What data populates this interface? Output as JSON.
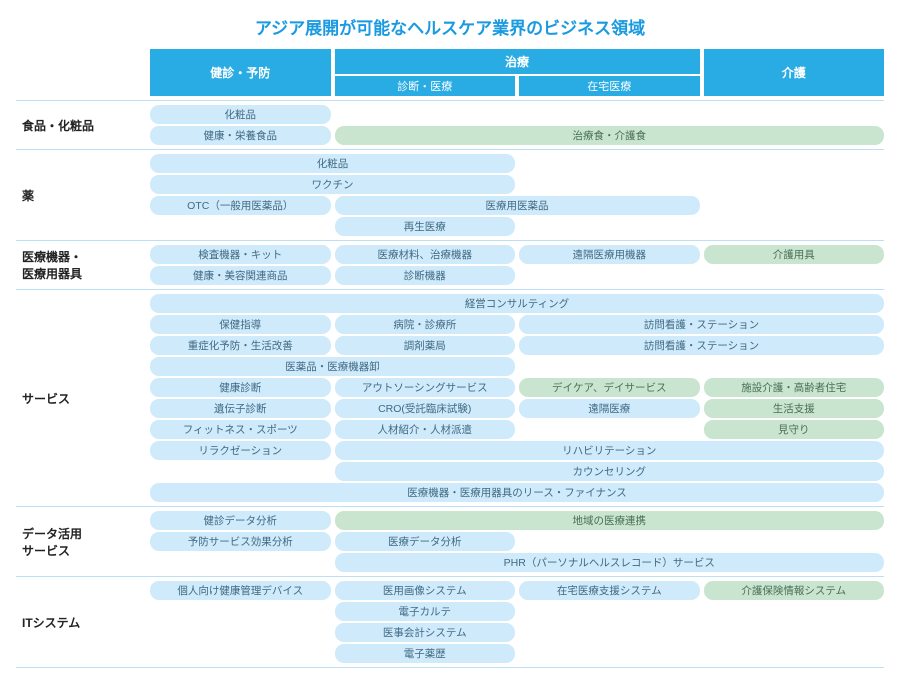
{
  "title": "アジア展開が可能なヘルスケア業界のビジネス領域",
  "title_color": "#1a9ae0",
  "colors": {
    "header_bg": "#29abe3",
    "header_fg": "#ffffff",
    "cell_blue": "#cfeafa",
    "cell_green": "#c9e5cf",
    "cell_fg": "#3f6a84",
    "cell_green_fg": "#4a6f55",
    "sep": "#bcdff5"
  },
  "columns": {
    "c1": "健診・予防",
    "c2_top": "治療",
    "c2a": "診断・医療",
    "c2b": "在宅医療",
    "c3": "介護"
  },
  "sections": [
    {
      "label": "食品・化粧品",
      "rows": [
        [
          {
            "span": 1,
            "text": "化粧品",
            "style": "blue"
          },
          null,
          null,
          null
        ],
        [
          {
            "span": 1,
            "text": "健康・栄養食品",
            "style": "blue"
          },
          {
            "span": 3,
            "text": "治療食・介護食",
            "style": "green"
          }
        ]
      ]
    },
    {
      "label": "薬",
      "rows": [
        [
          {
            "span": 2,
            "text": "化粧品",
            "style": "blue"
          },
          null,
          null
        ],
        [
          {
            "span": 2,
            "text": "ワクチン",
            "style": "blue"
          },
          null,
          null
        ],
        [
          {
            "span": 1,
            "text": "OTC（一般用医薬品）",
            "style": "blue"
          },
          {
            "span": 2,
            "text": "医療用医薬品",
            "style": "blue"
          },
          null
        ],
        [
          null,
          {
            "span": 1,
            "text": "再生医療",
            "style": "blue"
          },
          null,
          null
        ]
      ]
    },
    {
      "label": "医療機器・\n医療用器具",
      "rows": [
        [
          {
            "span": 1,
            "text": "検査機器・キット",
            "style": "blue"
          },
          {
            "span": 1,
            "text": "医療材料、治療機器",
            "style": "blue"
          },
          {
            "span": 1,
            "text": "遠隔医療用機器",
            "style": "blue"
          },
          {
            "span": 1,
            "text": "介護用具",
            "style": "green"
          }
        ],
        [
          {
            "span": 1,
            "text": "健康・美容関連商品",
            "style": "blue"
          },
          {
            "span": 1,
            "text": "診断機器",
            "style": "blue"
          },
          null,
          null
        ]
      ]
    },
    {
      "label": "サービス",
      "rows": [
        [
          {
            "span": 4,
            "text": "経営コンサルティング",
            "style": "blue"
          }
        ],
        [
          {
            "span": 1,
            "text": "保健指導",
            "style": "blue"
          },
          {
            "span": 1,
            "text": "病院・診療所",
            "style": "blue"
          },
          {
            "span": 2,
            "text": "訪問看護・ステーション",
            "style": "blue"
          }
        ],
        [
          {
            "span": 1,
            "text": "重症化予防・生活改善",
            "style": "blue"
          },
          {
            "span": 1,
            "text": "調剤薬局",
            "style": "blue"
          },
          {
            "span": 2,
            "text": "訪問看護・ステーション",
            "style": "blue"
          }
        ],
        [
          {
            "span": 2,
            "text": "医薬品・医療機器卸",
            "style": "blue"
          },
          null,
          null
        ],
        [
          {
            "span": 1,
            "text": "健康診断",
            "style": "blue"
          },
          {
            "span": 1,
            "text": "アウトソーシングサービス",
            "style": "blue"
          },
          {
            "span": 1,
            "text": "デイケア、デイサービス",
            "style": "green"
          },
          {
            "span": 1,
            "text": "施設介護・高齢者住宅",
            "style": "green"
          }
        ],
        [
          {
            "span": 1,
            "text": "遺伝子診断",
            "style": "blue"
          },
          {
            "span": 1,
            "text": "CRO(受託臨床試験)",
            "style": "blue"
          },
          {
            "span": 1,
            "text": "遠隔医療",
            "style": "blue"
          },
          {
            "span": 1,
            "text": "生活支援",
            "style": "green"
          }
        ],
        [
          {
            "span": 1,
            "text": "フィットネス・スポーツ",
            "style": "blue"
          },
          {
            "span": 1,
            "text": "人材紹介・人材派遣",
            "style": "blue"
          },
          null,
          {
            "span": 1,
            "text": "見守り",
            "style": "green"
          }
        ],
        [
          {
            "span": 1,
            "text": "リラクゼーション",
            "style": "blue"
          },
          {
            "span": 3,
            "text": "リハビリテーション",
            "style": "blue"
          }
        ],
        [
          null,
          {
            "span": 3,
            "text": "カウンセリング",
            "style": "blue"
          }
        ],
        [
          {
            "span": 4,
            "text": "医療機器・医療用器具のリース・ファイナンス",
            "style": "blue"
          }
        ]
      ]
    },
    {
      "label": "データ活用\nサービス",
      "rows": [
        [
          {
            "span": 1,
            "text": "健診データ分析",
            "style": "blue"
          },
          {
            "span": 3,
            "text": "地域の医療連携",
            "style": "green"
          }
        ],
        [
          {
            "span": 1,
            "text": "予防サービス効果分析",
            "style": "blue"
          },
          {
            "span": 1,
            "text": "医療データ分析",
            "style": "blue"
          },
          null,
          null
        ],
        [
          null,
          {
            "span": 3,
            "text": "PHR（パーソナルヘルスレコード）サービス",
            "style": "blue"
          }
        ]
      ]
    },
    {
      "label": "ITシステム",
      "rows": [
        [
          {
            "span": 1,
            "text": "個人向け健康管理デバイス",
            "style": "blue"
          },
          {
            "span": 1,
            "text": "医用画像システム",
            "style": "blue"
          },
          {
            "span": 1,
            "text": "在宅医療支援システム",
            "style": "blue"
          },
          {
            "span": 1,
            "text": "介護保険情報システム",
            "style": "green"
          }
        ],
        [
          null,
          {
            "span": 1,
            "text": "電子カルテ",
            "style": "blue"
          },
          null,
          null
        ],
        [
          null,
          {
            "span": 1,
            "text": "医事会計システム",
            "style": "blue"
          },
          null,
          null
        ],
        [
          null,
          {
            "span": 1,
            "text": "電子薬歴",
            "style": "blue"
          },
          null,
          null
        ]
      ]
    }
  ]
}
